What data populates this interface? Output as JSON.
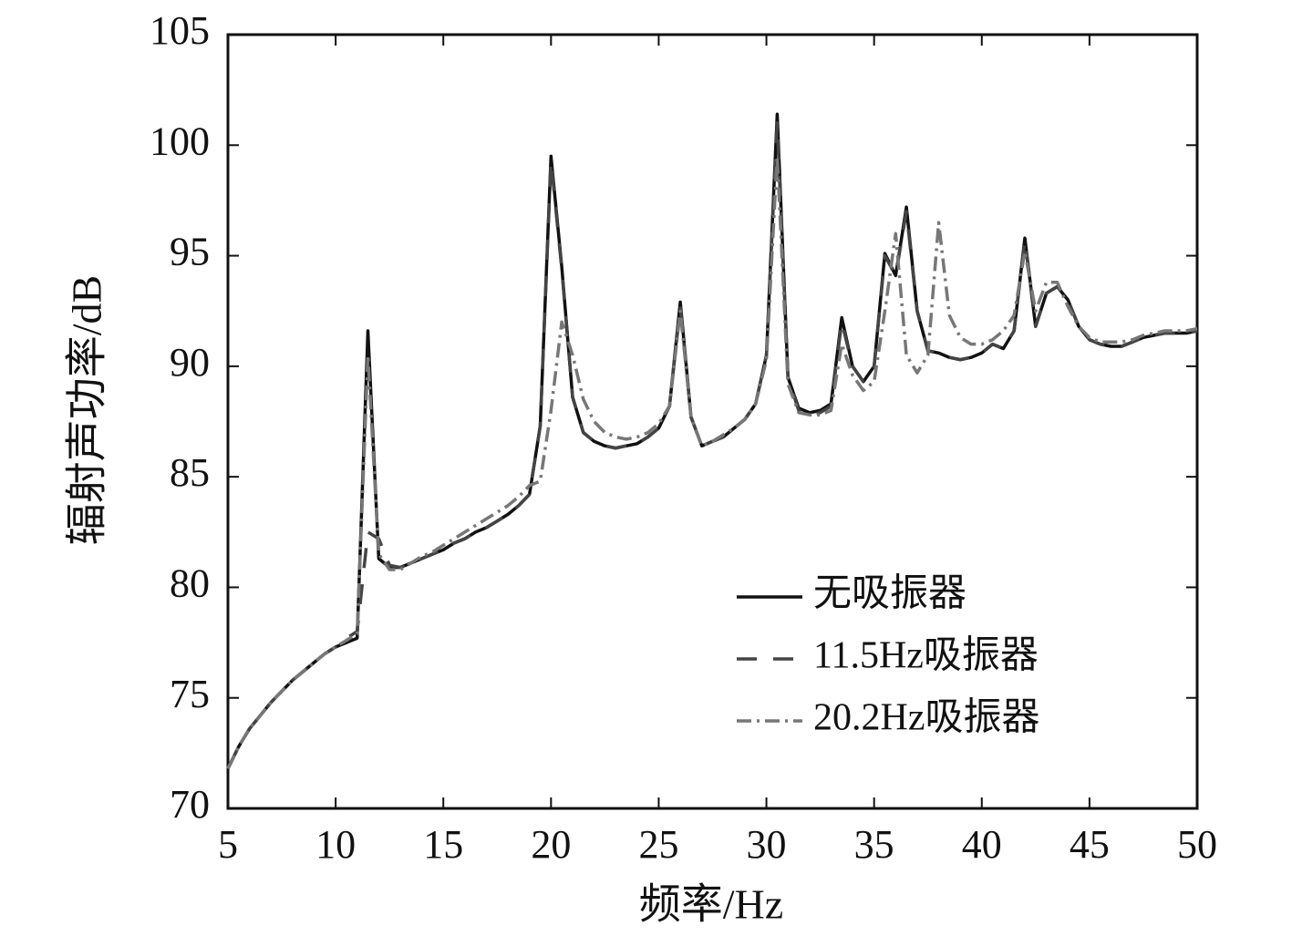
{
  "chart_data": {
    "type": "line",
    "xlabel": "频率/Hz",
    "ylabel": "辐射声功率/dB",
    "x": [
      5,
      5.5,
      6,
      6.5,
      7,
      7.5,
      8,
      8.5,
      9,
      9.5,
      10,
      10.5,
      11,
      11.5,
      12,
      12.5,
      13,
      13.5,
      14,
      14.5,
      15,
      15.5,
      16,
      16.5,
      17,
      17.5,
      18,
      18.5,
      19,
      19.5,
      20,
      20.5,
      21,
      21.5,
      22,
      22.5,
      23,
      23.5,
      24,
      24.5,
      25,
      25.5,
      26,
      26.5,
      27,
      27.5,
      28,
      28.5,
      29,
      29.5,
      30,
      30.5,
      31,
      31.5,
      32,
      32.5,
      33,
      33.5,
      34,
      34.5,
      35,
      35.5,
      36,
      36.5,
      37,
      37.5,
      38,
      38.5,
      39,
      39.5,
      40,
      40.5,
      41,
      41.5,
      42,
      42.5,
      43,
      43.5,
      44,
      44.5,
      45,
      45.5,
      46,
      46.5,
      47,
      47.5,
      48,
      48.5,
      49,
      49.5,
      50
    ],
    "series": [
      {
        "name": "无吸振器",
        "color": "#111111",
        "dash": "none",
        "values": [
          71.8,
          72.8,
          73.6,
          74.2,
          74.8,
          75.3,
          75.8,
          76.2,
          76.6,
          77.0,
          77.3,
          77.5,
          77.7,
          91.6,
          81.3,
          80.9,
          80.9,
          81.1,
          81.3,
          81.5,
          81.7,
          82.0,
          82.2,
          82.5,
          82.7,
          83.0,
          83.3,
          83.7,
          84.2,
          87.3,
          99.5,
          94.5,
          88.6,
          87.0,
          86.6,
          86.4,
          86.3,
          86.4,
          86.5,
          86.8,
          87.2,
          88.2,
          92.9,
          87.7,
          86.4,
          86.6,
          86.8,
          87.2,
          87.6,
          88.3,
          90.5,
          101.4,
          89.5,
          88.1,
          87.9,
          88.0,
          88.3,
          92.2,
          90.0,
          89.3,
          90.0,
          95.1,
          94.1,
          97.2,
          92.5,
          90.7,
          90.6,
          90.4,
          90.3,
          90.4,
          90.6,
          91.0,
          90.8,
          91.6,
          95.8,
          91.8,
          93.3,
          93.6,
          93.0,
          91.8,
          91.2,
          91.0,
          90.9,
          90.9,
          91.1,
          91.3,
          91.4,
          91.5,
          91.5,
          91.5,
          91.6
        ]
      },
      {
        "name": "11.5Hz吸振器",
        "color": "#444444",
        "dash": "22,18",
        "values": [
          71.8,
          72.8,
          73.6,
          74.2,
          74.8,
          75.3,
          75.8,
          76.2,
          76.6,
          77.0,
          77.3,
          77.7,
          78.0,
          82.5,
          82.2,
          81.0,
          80.9,
          81.1,
          81.3,
          81.5,
          81.7,
          82.0,
          82.2,
          82.5,
          82.7,
          83.0,
          83.3,
          83.7,
          84.2,
          87.3,
          99.3,
          94.4,
          88.6,
          87.0,
          86.6,
          86.4,
          86.3,
          86.4,
          86.5,
          86.8,
          87.2,
          88.2,
          92.7,
          87.7,
          86.4,
          86.6,
          86.8,
          87.2,
          87.6,
          88.3,
          90.5,
          101.0,
          89.5,
          88.0,
          87.8,
          87.9,
          88.2,
          92.0,
          90.0,
          89.3,
          90.0,
          95.0,
          94.1,
          97.0,
          92.5,
          90.7,
          90.6,
          90.4,
          90.3,
          90.4,
          90.6,
          91.0,
          90.8,
          91.6,
          95.7,
          91.8,
          93.3,
          93.6,
          93.0,
          91.8,
          91.2,
          91.0,
          90.9,
          90.9,
          91.1,
          91.3,
          91.4,
          91.5,
          91.5,
          91.5,
          91.6
        ]
      },
      {
        "name": "20.2Hz吸振器",
        "color": "#777777",
        "dash": "16,6,3,6",
        "values": [
          71.8,
          72.8,
          73.6,
          74.2,
          74.8,
          75.3,
          75.8,
          76.2,
          76.6,
          77.0,
          77.3,
          77.6,
          77.9,
          90.5,
          81.5,
          80.8,
          80.8,
          81.1,
          81.4,
          81.6,
          81.9,
          82.2,
          82.5,
          82.8,
          83.1,
          83.4,
          83.7,
          84.1,
          84.6,
          84.8,
          88.0,
          92.0,
          90.5,
          88.5,
          87.5,
          87.0,
          86.8,
          86.7,
          86.8,
          87.0,
          87.4,
          88.2,
          92.5,
          87.7,
          86.4,
          86.6,
          86.9,
          87.2,
          87.6,
          88.3,
          90.3,
          99.5,
          89.2,
          87.9,
          87.8,
          87.8,
          88.0,
          91.0,
          89.6,
          88.9,
          89.3,
          92.5,
          96.0,
          90.5,
          89.7,
          90.5,
          96.5,
          92.3,
          91.3,
          91.0,
          91.0,
          91.2,
          91.6,
          92.3,
          95.2,
          92.5,
          93.8,
          93.8,
          92.7,
          91.8,
          91.3,
          91.1,
          91.1,
          91.1,
          91.2,
          91.4,
          91.5,
          91.6,
          91.6,
          91.6,
          91.7
        ]
      }
    ],
    "xlim": [
      5,
      50
    ],
    "xticks": [
      5,
      10,
      15,
      20,
      25,
      30,
      35,
      40,
      45,
      50
    ],
    "ylim": [
      70,
      105
    ],
    "yticks": [
      70,
      75,
      80,
      85,
      90,
      95,
      100,
      105
    ],
    "legend": "lower right"
  }
}
